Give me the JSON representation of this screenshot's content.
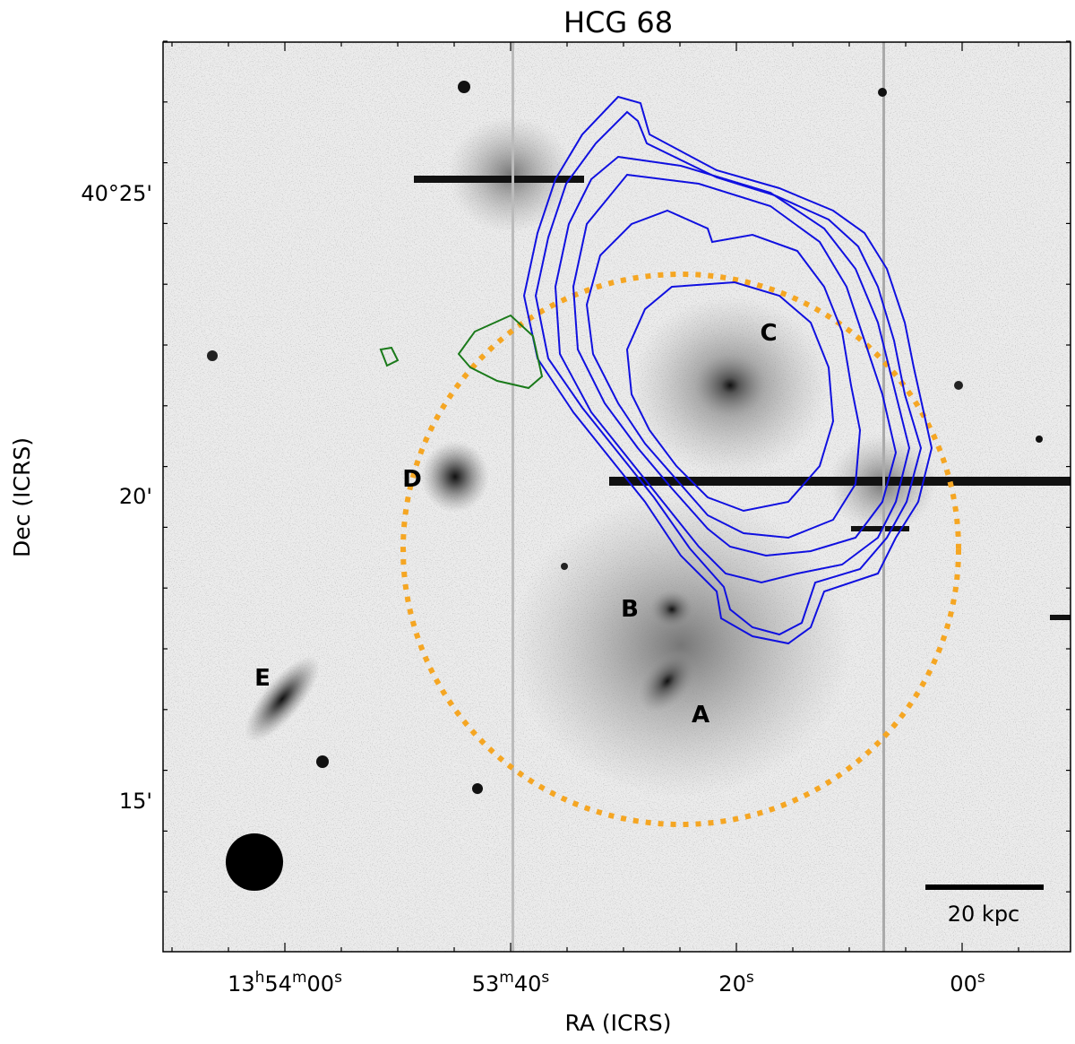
{
  "title": "HCG 68",
  "x_label": "RA (ICRS)",
  "y_label": "Dec (ICRS)",
  "x_ticks": [
    [
      "13",
      "h",
      "54",
      "m",
      "00",
      "s"
    ],
    [
      "53",
      "m",
      "40",
      "s"
    ],
    [
      "20",
      "s"
    ],
    [
      "00",
      "s"
    ]
  ],
  "y_ticks": [
    "40°25'",
    "20'",
    "15'"
  ],
  "galaxies": [
    "C",
    "D",
    "B",
    "A",
    "E"
  ],
  "scale_bar": "20 kpc"
}
